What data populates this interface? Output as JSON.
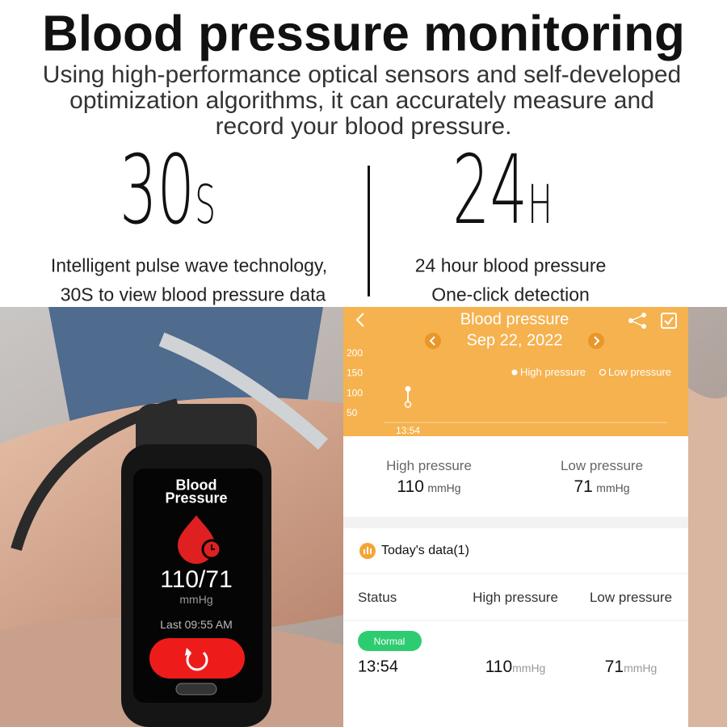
{
  "header": {
    "title": "Blood pressure monitoring",
    "description": [
      "Using high-performance optical sensors and self-developed",
      "optimization algorithms, it can accurately measure and",
      "record your blood pressure."
    ]
  },
  "features": [
    {
      "value": "30",
      "unit": "S",
      "lines": [
        "Intelligent pulse wave technology,",
        "30S to view blood pressure data"
      ]
    },
    {
      "value": "24",
      "unit": "H",
      "lines": [
        "24 hour blood pressure",
        "One-click detection"
      ]
    }
  ],
  "watch": {
    "title": [
      "Blood",
      "Pressure"
    ],
    "reading": "110/71",
    "unit": "mmHg",
    "last": "Last 09:55 AM"
  },
  "app": {
    "title": "Blood pressure",
    "date": "Sep 22, 2022",
    "chart": {
      "type": "scatter",
      "ylim": [
        25,
        225
      ],
      "yticks": [
        50,
        100,
        150,
        200
      ],
      "x": [
        "13:54"
      ],
      "series": [
        {
          "name": "High pressure",
          "color": "#ffffff",
          "values": [
            110
          ]
        },
        {
          "name": "Low pressure",
          "color": "#ffffff",
          "values": [
            71
          ]
        }
      ]
    },
    "unit": "mmHg",
    "today": "Today's data(1)",
    "columns": [
      "Status",
      "High pressure",
      "Low pressure"
    ],
    "status": "Normal"
  }
}
